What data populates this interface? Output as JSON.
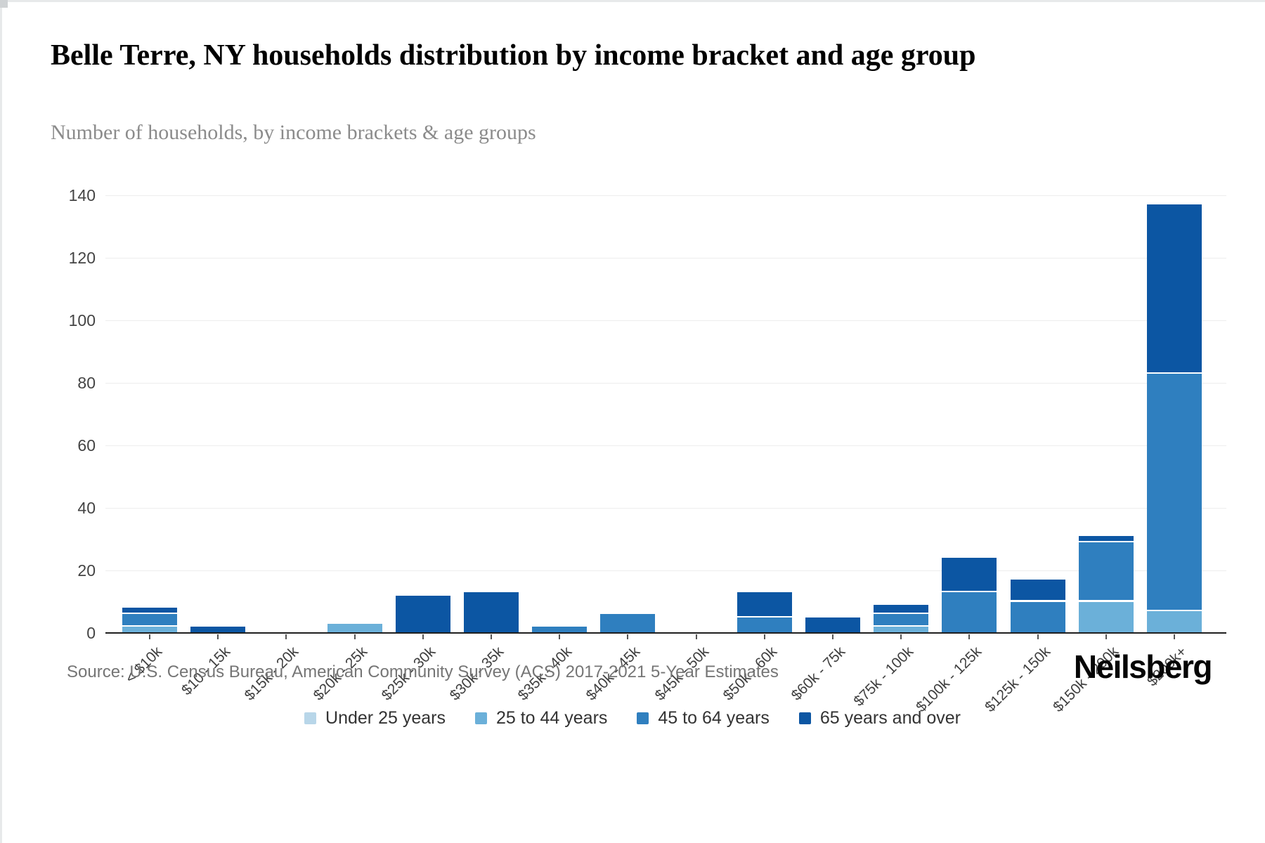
{
  "header": {
    "title": "Belle Terre, NY households distribution by income bracket and age group",
    "subtitle": "Number of households, by income brackets & age groups"
  },
  "chart_data": {
    "type": "bar",
    "stacked": true,
    "title": "Belle Terre, NY households distribution by income bracket and age group",
    "xlabel": "",
    "ylabel": "",
    "ylim": [
      0,
      140
    ],
    "yticks": [
      0,
      20,
      40,
      60,
      80,
      100,
      120,
      140
    ],
    "grid": "horizontal",
    "legend_position": "bottom",
    "categories": [
      "< $10k",
      "$10 - 15k",
      "$15k - 20k",
      "$20k - 25k",
      "$25k - 30k",
      "$30k - 35k",
      "$35k - 40k",
      "$40k - 45k",
      "$45k - 50k",
      "$50k - 60k",
      "$60k - 75k",
      "$75k - 100k",
      "$100k - 125k",
      "$125k - 150k",
      "$150k - 200k",
      "$200k+"
    ],
    "series": [
      {
        "name": "Under 25 years",
        "color": "#b8d6e9",
        "values": [
          0,
          0,
          0,
          0,
          0,
          0,
          0,
          0,
          0,
          0,
          0,
          0,
          0,
          0,
          0,
          0
        ]
      },
      {
        "name": "25 to 44 years",
        "color": "#6bb0d9",
        "values": [
          2,
          0,
          0,
          3,
          0,
          0,
          0,
          0,
          0,
          0,
          0,
          2,
          0,
          0,
          10,
          7
        ]
      },
      {
        "name": "45 to 64 years",
        "color": "#2f7fbf",
        "values": [
          4,
          0,
          0,
          0,
          0,
          0,
          2,
          6,
          0,
          5,
          0,
          4,
          13,
          10,
          19,
          76
        ]
      },
      {
        "name": "65 years and over",
        "color": "#0c56a3",
        "values": [
          2,
          2,
          0,
          0,
          12,
          13,
          0,
          0,
          0,
          8,
          5,
          3,
          11,
          7,
          2,
          54
        ]
      }
    ],
    "totals": [
      8,
      2,
      0,
      3,
      12,
      13,
      2,
      6,
      0,
      13,
      5,
      9,
      24,
      17,
      31,
      137
    ]
  },
  "footer": {
    "source": "Source: U.S. Census Bureau, American Community Survey (ACS) 2017-2021 5-Year Estimates",
    "brand": "Neilsberg"
  }
}
